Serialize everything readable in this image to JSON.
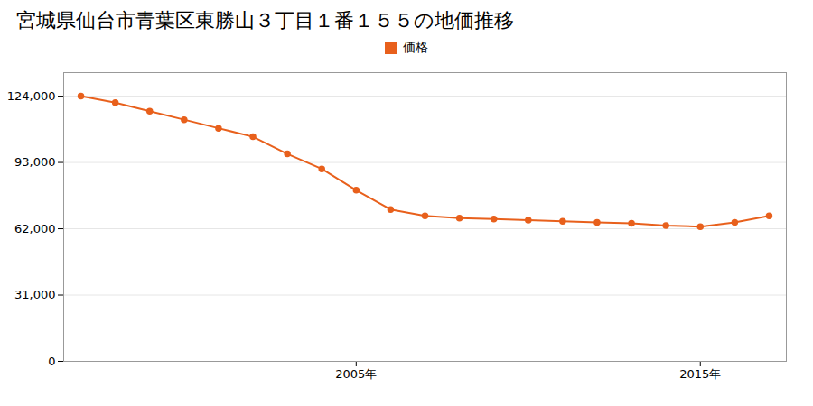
{
  "chart_data": {
    "type": "line",
    "title": "宮城県仙台市青葉区東勝山３丁目１番１５５の地価推移",
    "x": [
      1997,
      1998,
      1999,
      2000,
      2001,
      2002,
      2003,
      2004,
      2005,
      2006,
      2007,
      2008,
      2009,
      2010,
      2011,
      2012,
      2013,
      2014,
      2015,
      2016,
      2017
    ],
    "series": [
      {
        "name": "価格",
        "color": "#e8601c",
        "marker": "circle",
        "values": [
          124000,
          121000,
          117000,
          113000,
          109000,
          105000,
          97000,
          90000,
          80000,
          71000,
          68000,
          67000,
          66500,
          66000,
          65500,
          65000,
          64500,
          63500,
          63000,
          65000,
          68000
        ]
      }
    ],
    "xlim": [
      1996.5,
      2017.5
    ],
    "xticks": [
      {
        "value": 2005,
        "label": "2005年"
      },
      {
        "value": 2015,
        "label": "2015年"
      }
    ],
    "ylim": [
      0,
      135000
    ],
    "yticks": [
      0,
      {
        "value": 31000,
        "label": "31,000"
      },
      {
        "value": 62000,
        "label": "62,000"
      },
      {
        "value": 93000,
        "label": "93,000"
      },
      {
        "value": 124000,
        "label": "124,000"
      }
    ],
    "grid": true,
    "legend": "top"
  }
}
